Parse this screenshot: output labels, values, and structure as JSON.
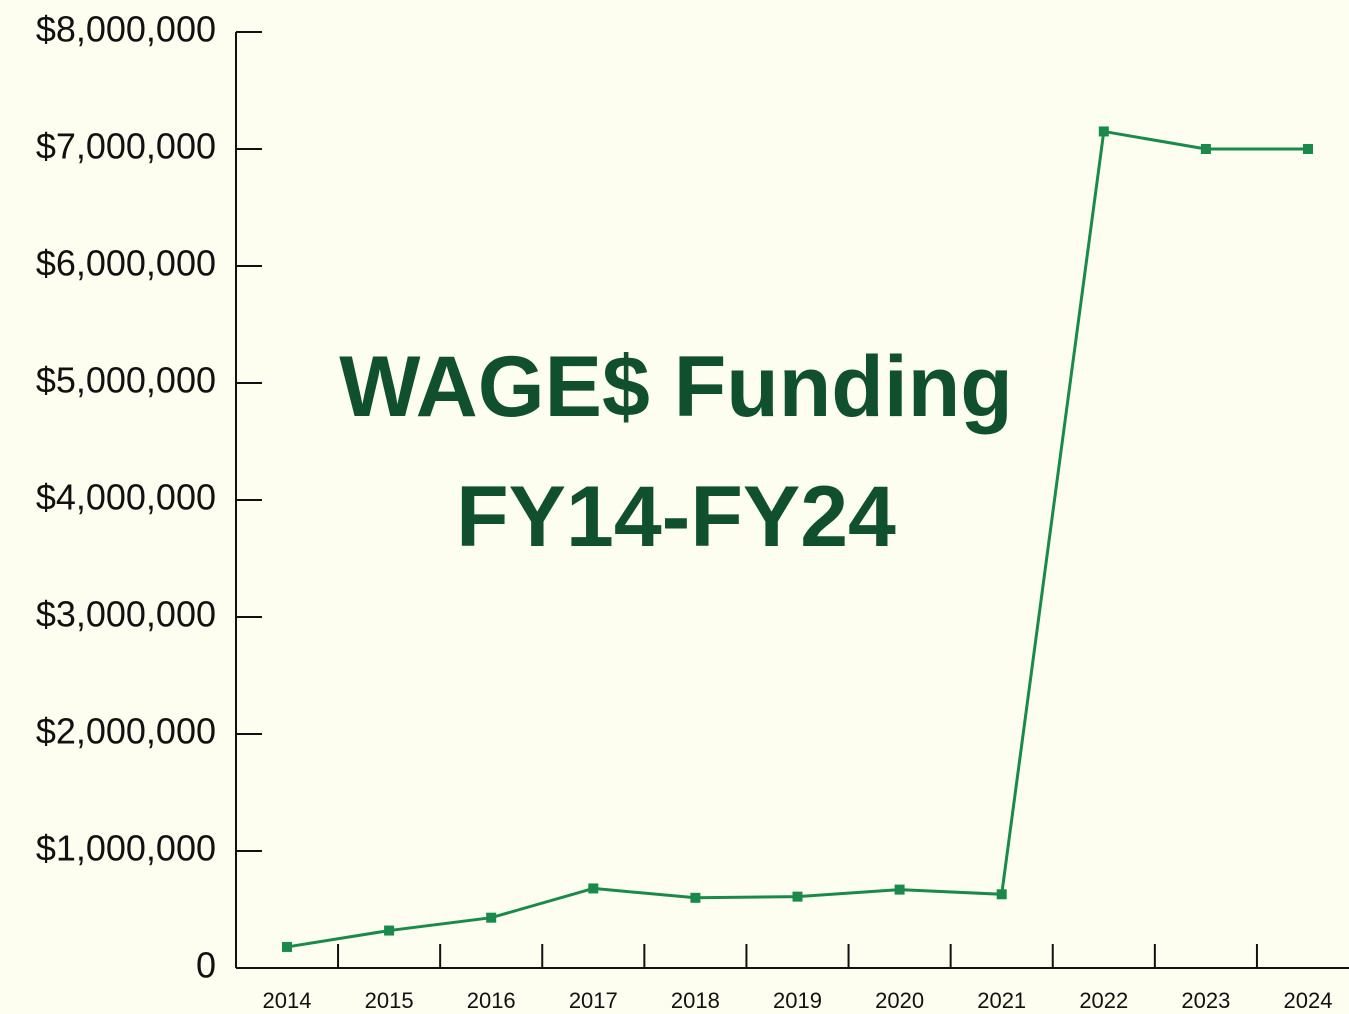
{
  "chart_data": {
    "type": "line",
    "title": "WAGE$ Funding FY14-FY24",
    "title_color": "#11502e",
    "categories": [
      "2014",
      "2015",
      "2016",
      "2017",
      "2018",
      "2019",
      "2020",
      "2021",
      "2022",
      "2023",
      "2024"
    ],
    "series": [
      {
        "name": "WAGE$ Funding",
        "color": "#1a8a4a",
        "values": [
          180000,
          320000,
          430000,
          680000,
          600000,
          610000,
          670000,
          630000,
          7150000,
          7000000,
          7000000
        ]
      }
    ],
    "ylim": [
      0,
      8000000
    ],
    "yticks": [
      0,
      {
        "value": 1000000,
        "label": "$1,000,000"
      },
      {
        "value": 2000000,
        "label": "$2,000,000"
      },
      {
        "value": 3000000,
        "label": "$3,000,000"
      },
      {
        "value": 4000000,
        "label": "$4,000,000"
      },
      {
        "value": 5000000,
        "label": "$5,000,000"
      },
      {
        "value": 6000000,
        "label": "$6,000,000"
      },
      {
        "value": 7000000,
        "label": "$7,000,000"
      },
      {
        "value": 8000000,
        "label": "$8,000,000"
      }
    ],
    "grid": false
  }
}
